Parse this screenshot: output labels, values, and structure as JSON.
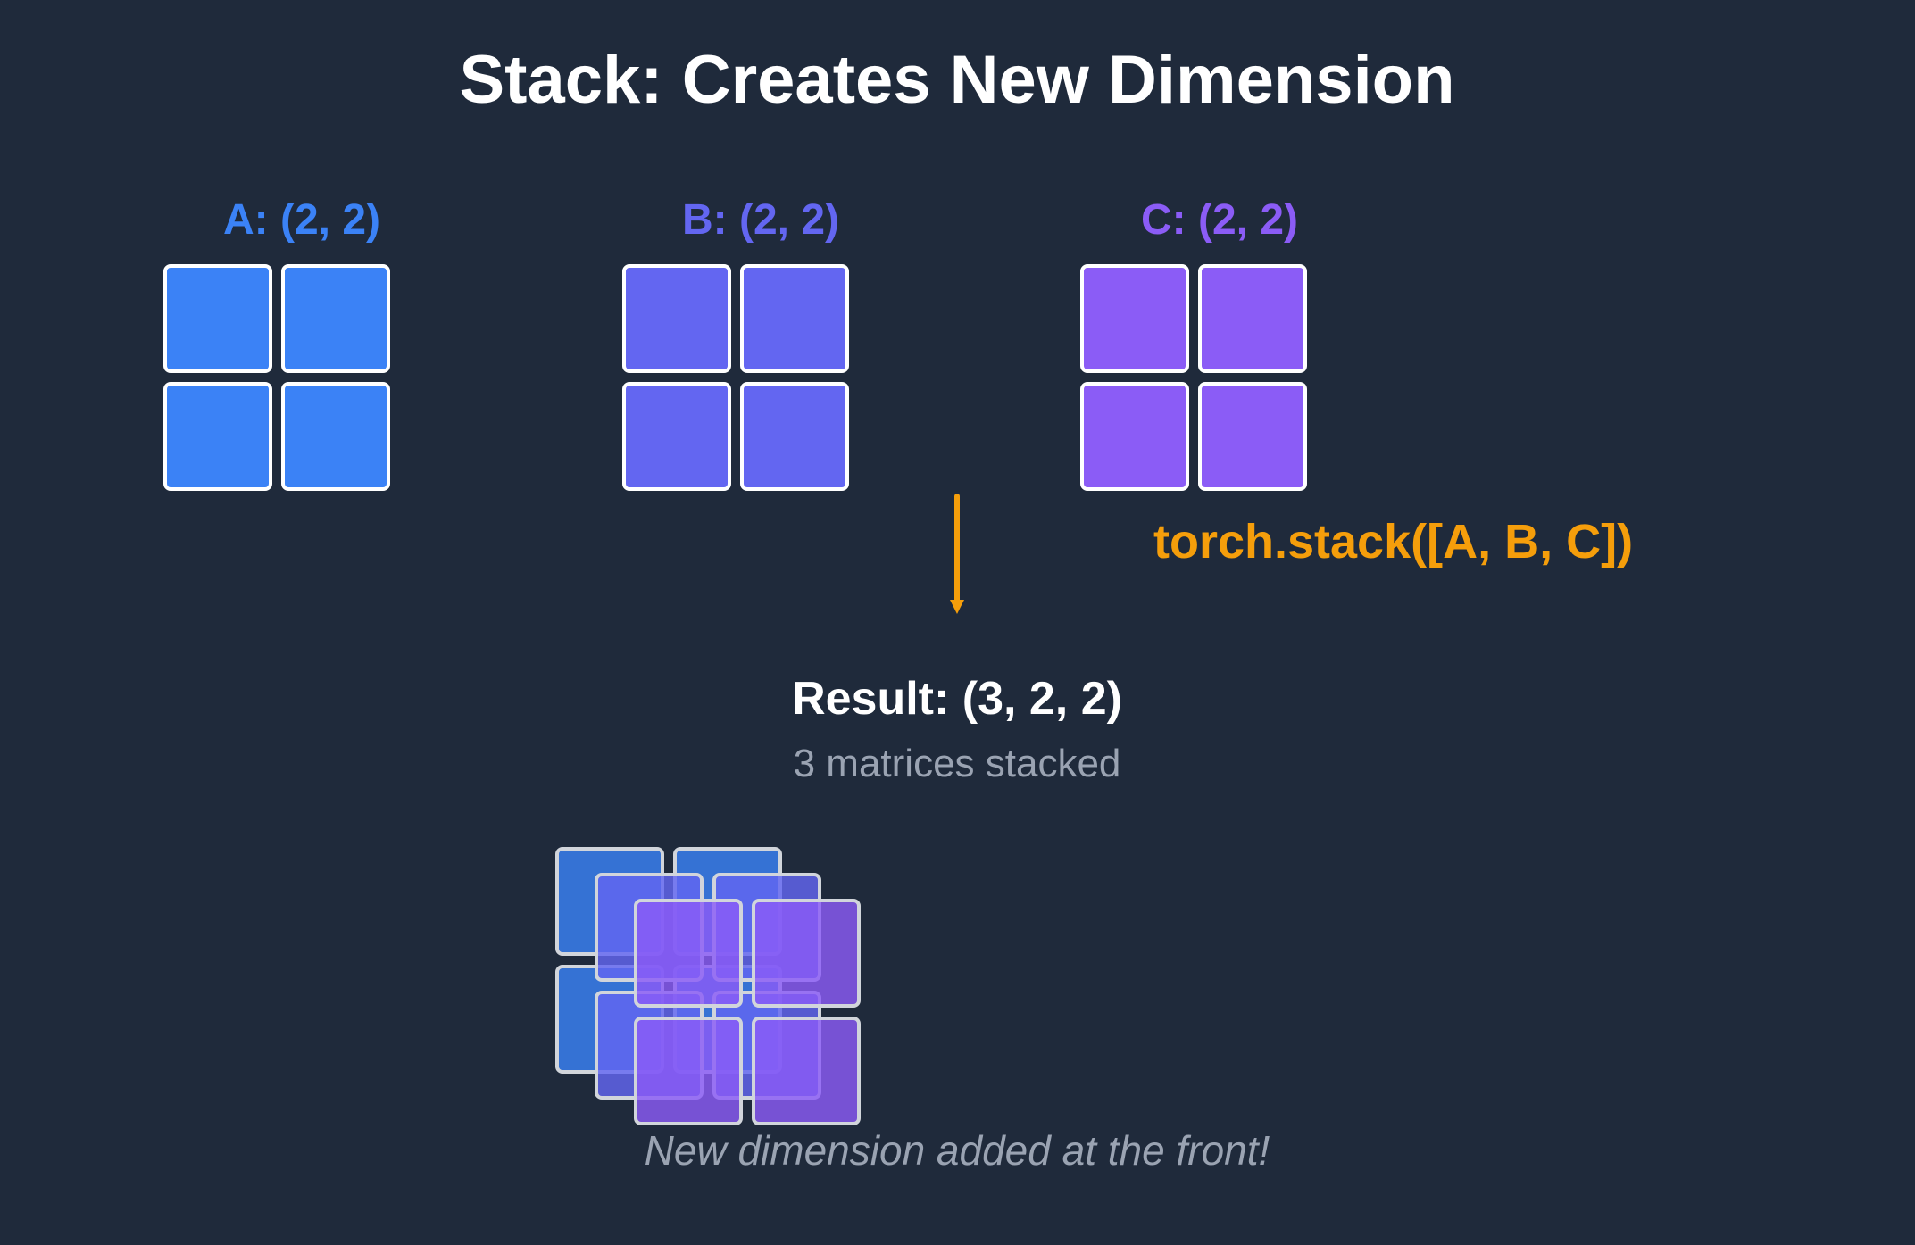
{
  "title": "Stack: Creates New Dimension",
  "matrices": [
    {
      "label": "A: (2, 2)",
      "color": "#3b82f6"
    },
    {
      "label": "B: (2, 2)",
      "color": "#6366f1"
    },
    {
      "label": "C: (2, 2)",
      "color": "#8b5cf6"
    }
  ],
  "operation": {
    "label": "torch.stack([A, B, C])",
    "color": "#f59e0b"
  },
  "result": {
    "label": "Result: (3, 2, 2)",
    "sublabel": "3 matrices stacked"
  },
  "note": "New dimension added at the front!",
  "colors": {
    "background": "#1f2a3b",
    "cell_border": "#ffffff",
    "stacked_border": "#d1d5db"
  }
}
